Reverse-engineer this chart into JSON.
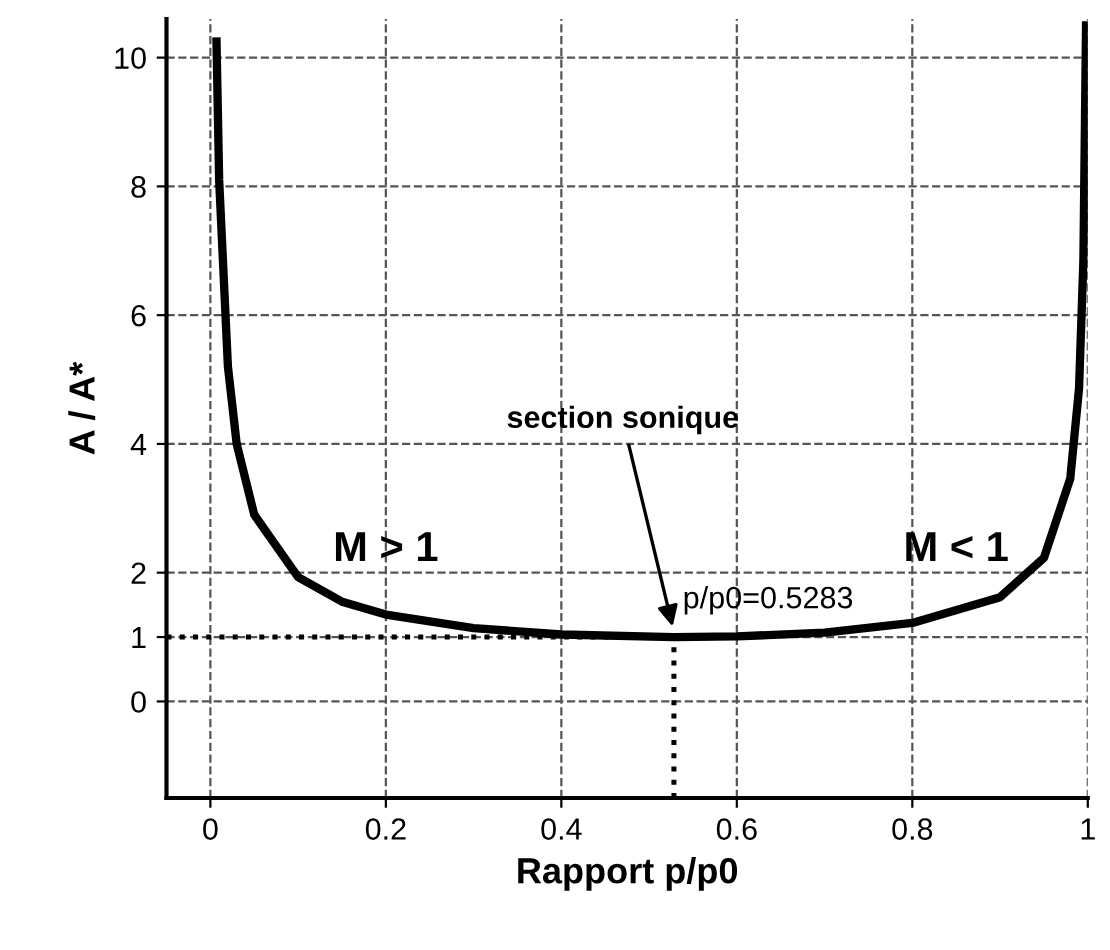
{
  "chart_data": {
    "type": "line",
    "xlabel": "Rapport p/p0",
    "ylabel": "A / A*",
    "x": [
      0.007,
      0.01,
      0.02,
      0.03,
      0.05,
      0.1,
      0.15,
      0.2,
      0.3,
      0.4,
      0.5283,
      0.6,
      0.7,
      0.8,
      0.9,
      0.95,
      0.98,
      0.99,
      0.995,
      0.998
    ],
    "series": [
      {
        "color": "#000000",
        "values": [
          10.25,
          8.1,
          5.2,
          4.0,
          2.9,
          1.93,
          1.55,
          1.35,
          1.14,
          1.04,
          1.0,
          1.01,
          1.07,
          1.22,
          1.62,
          2.23,
          3.46,
          4.86,
          6.86,
          10.5
        ]
      }
    ],
    "xlim": [
      -0.05,
      1.0
    ],
    "ylim": [
      -1.5,
      10.6
    ],
    "xticks": [
      0,
      0.2,
      0.4,
      0.6,
      0.8,
      1
    ],
    "yticks": [
      0,
      1,
      2,
      4,
      6,
      8,
      10
    ],
    "grid": true,
    "line_style": "solid",
    "marker": "none",
    "ref_lines": [
      {
        "axis": "y",
        "value": 1,
        "line_style": "dotted",
        "color": "#000000"
      },
      {
        "axis": "x",
        "value": 0.5283,
        "line_style": "dotted",
        "color": "#000000"
      }
    ],
    "annotations": [
      {
        "text": "section sonique",
        "x": 0.5283,
        "y": 1
      },
      {
        "text": "p/p0=0.5283",
        "x": 0.5283,
        "y": 1
      },
      "M > 1",
      "M < 1"
    ]
  }
}
